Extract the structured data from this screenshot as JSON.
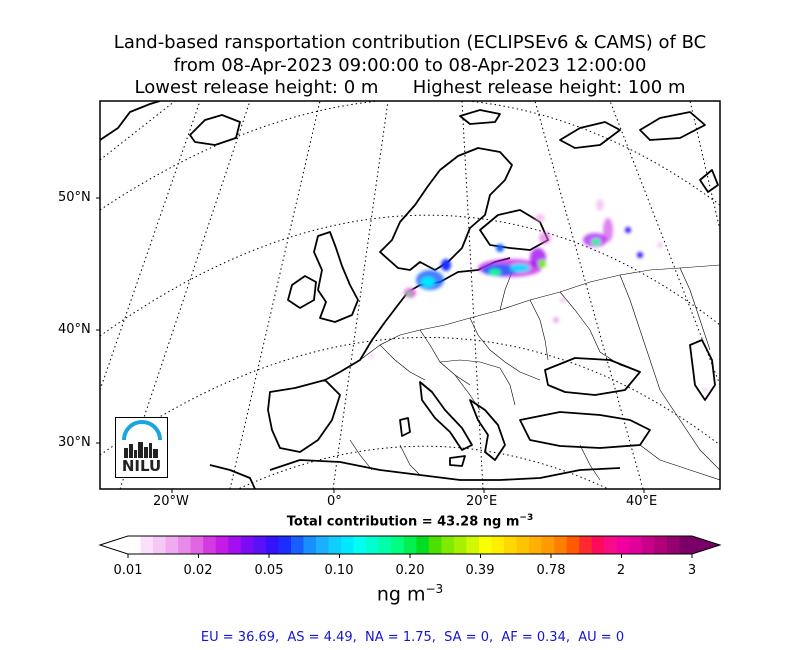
{
  "title": {
    "line1": "Land-based ransportation contribution (ECLIPSEv6 & CAMS) of BC",
    "line2": "from 08-Apr-2023 09:00:00 to 08-Apr-2023 12:00:00",
    "line3": "Lowest release height: 0 m      Highest release height: 100 m"
  },
  "map": {
    "lat_labels": [
      "50°N",
      "40°N",
      "30°N"
    ],
    "lon_labels": [
      "20°W",
      "0°",
      "20°E",
      "40°E"
    ],
    "logo_text": "NILU",
    "logo_icon": "nilu-logo-icon",
    "coastline_color": "#000000",
    "border_color": "#000000",
    "grid": "dotted"
  },
  "total": {
    "label": "Total contribution = 43.28 ng m",
    "exponent": "−3"
  },
  "colorbar": {
    "tick_labels": [
      "0.01",
      "0.02",
      "0.05",
      "0.10",
      "0.20",
      "0.39",
      "0.78",
      "2",
      "3"
    ],
    "unit": "ng m",
    "unit_exponent": "−3",
    "extend": "both",
    "colors": [
      "#ffffff",
      "#fbe0fb",
      "#f5c8f5",
      "#efaaf0",
      "#e88ae9",
      "#e066e3",
      "#d33ae0",
      "#c21ce6",
      "#a30ff0",
      "#7d0cf5",
      "#5a10f8",
      "#3412fb",
      "#1b2dff",
      "#1760ff",
      "#1890ff",
      "#1ab0ff",
      "#10cfff",
      "#00e8ff",
      "#00fff0",
      "#00ffd0",
      "#00ffa8",
      "#00ff80",
      "#00f050",
      "#00dd20",
      "#4ce000",
      "#80ea00",
      "#a8f000",
      "#d0f800",
      "#f8ff00",
      "#ffee00",
      "#ffd800",
      "#ffc400",
      "#ffb000",
      "#ff9a00",
      "#ff8000",
      "#ff5a00",
      "#ff2a30",
      "#ff0a5a",
      "#f80a88",
      "#f000a0",
      "#e0009a",
      "#c8008a",
      "#b0007a",
      "#960070",
      "#7a0068"
    ]
  },
  "region_totals": "EU = 36.69,  AS = 4.49,  NA = 1.75,  SA = 0,  AF = 0.34,  AU = 0"
}
